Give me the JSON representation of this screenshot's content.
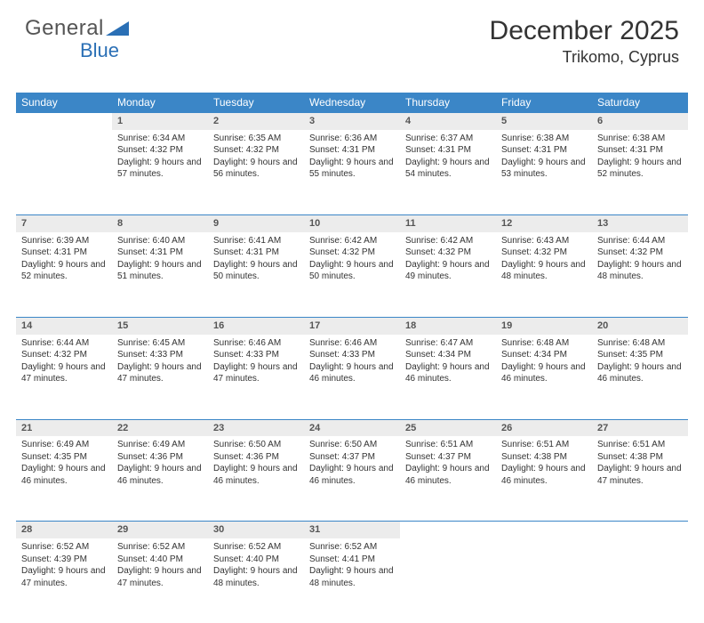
{
  "brand": {
    "name_part1": "General",
    "name_part2": "Blue",
    "text_color": "#555555",
    "accent_color": "#2a6fb5",
    "triangle_color": "#2a6fb5"
  },
  "header": {
    "title": "December 2025",
    "subtitle": "Trikomo, Cyprus",
    "title_fontsize": 30,
    "subtitle_fontsize": 18
  },
  "style": {
    "header_bg": "#3b86c7",
    "header_text": "#ffffff",
    "daynum_bg": "#ececec",
    "day_border": "#3b86c7",
    "body_text": "#333333",
    "body_fontsize": 10,
    "daynum_fontsize": 11,
    "col_header_fontsize": 12,
    "page_bg": "#ffffff"
  },
  "day_labels": [
    "Sunday",
    "Monday",
    "Tuesday",
    "Wednesday",
    "Thursday",
    "Friday",
    "Saturday"
  ],
  "weeks": [
    {
      "nums": [
        "",
        "1",
        "2",
        "3",
        "4",
        "5",
        "6"
      ],
      "cells": [
        null,
        {
          "sunrise": "Sunrise: 6:34 AM",
          "sunset": "Sunset: 4:32 PM",
          "day": "Daylight: 9 hours and 57 minutes."
        },
        {
          "sunrise": "Sunrise: 6:35 AM",
          "sunset": "Sunset: 4:32 PM",
          "day": "Daylight: 9 hours and 56 minutes."
        },
        {
          "sunrise": "Sunrise: 6:36 AM",
          "sunset": "Sunset: 4:31 PM",
          "day": "Daylight: 9 hours and 55 minutes."
        },
        {
          "sunrise": "Sunrise: 6:37 AM",
          "sunset": "Sunset: 4:31 PM",
          "day": "Daylight: 9 hours and 54 minutes."
        },
        {
          "sunrise": "Sunrise: 6:38 AM",
          "sunset": "Sunset: 4:31 PM",
          "day": "Daylight: 9 hours and 53 minutes."
        },
        {
          "sunrise": "Sunrise: 6:38 AM",
          "sunset": "Sunset: 4:31 PM",
          "day": "Daylight: 9 hours and 52 minutes."
        }
      ]
    },
    {
      "nums": [
        "7",
        "8",
        "9",
        "10",
        "11",
        "12",
        "13"
      ],
      "cells": [
        {
          "sunrise": "Sunrise: 6:39 AM",
          "sunset": "Sunset: 4:31 PM",
          "day": "Daylight: 9 hours and 52 minutes."
        },
        {
          "sunrise": "Sunrise: 6:40 AM",
          "sunset": "Sunset: 4:31 PM",
          "day": "Daylight: 9 hours and 51 minutes."
        },
        {
          "sunrise": "Sunrise: 6:41 AM",
          "sunset": "Sunset: 4:31 PM",
          "day": "Daylight: 9 hours and 50 minutes."
        },
        {
          "sunrise": "Sunrise: 6:42 AM",
          "sunset": "Sunset: 4:32 PM",
          "day": "Daylight: 9 hours and 50 minutes."
        },
        {
          "sunrise": "Sunrise: 6:42 AM",
          "sunset": "Sunset: 4:32 PM",
          "day": "Daylight: 9 hours and 49 minutes."
        },
        {
          "sunrise": "Sunrise: 6:43 AM",
          "sunset": "Sunset: 4:32 PM",
          "day": "Daylight: 9 hours and 48 minutes."
        },
        {
          "sunrise": "Sunrise: 6:44 AM",
          "sunset": "Sunset: 4:32 PM",
          "day": "Daylight: 9 hours and 48 minutes."
        }
      ]
    },
    {
      "nums": [
        "14",
        "15",
        "16",
        "17",
        "18",
        "19",
        "20"
      ],
      "cells": [
        {
          "sunrise": "Sunrise: 6:44 AM",
          "sunset": "Sunset: 4:32 PM",
          "day": "Daylight: 9 hours and 47 minutes."
        },
        {
          "sunrise": "Sunrise: 6:45 AM",
          "sunset": "Sunset: 4:33 PM",
          "day": "Daylight: 9 hours and 47 minutes."
        },
        {
          "sunrise": "Sunrise: 6:46 AM",
          "sunset": "Sunset: 4:33 PM",
          "day": "Daylight: 9 hours and 47 minutes."
        },
        {
          "sunrise": "Sunrise: 6:46 AM",
          "sunset": "Sunset: 4:33 PM",
          "day": "Daylight: 9 hours and 46 minutes."
        },
        {
          "sunrise": "Sunrise: 6:47 AM",
          "sunset": "Sunset: 4:34 PM",
          "day": "Daylight: 9 hours and 46 minutes."
        },
        {
          "sunrise": "Sunrise: 6:48 AM",
          "sunset": "Sunset: 4:34 PM",
          "day": "Daylight: 9 hours and 46 minutes."
        },
        {
          "sunrise": "Sunrise: 6:48 AM",
          "sunset": "Sunset: 4:35 PM",
          "day": "Daylight: 9 hours and 46 minutes."
        }
      ]
    },
    {
      "nums": [
        "21",
        "22",
        "23",
        "24",
        "25",
        "26",
        "27"
      ],
      "cells": [
        {
          "sunrise": "Sunrise: 6:49 AM",
          "sunset": "Sunset: 4:35 PM",
          "day": "Daylight: 9 hours and 46 minutes."
        },
        {
          "sunrise": "Sunrise: 6:49 AM",
          "sunset": "Sunset: 4:36 PM",
          "day": "Daylight: 9 hours and 46 minutes."
        },
        {
          "sunrise": "Sunrise: 6:50 AM",
          "sunset": "Sunset: 4:36 PM",
          "day": "Daylight: 9 hours and 46 minutes."
        },
        {
          "sunrise": "Sunrise: 6:50 AM",
          "sunset": "Sunset: 4:37 PM",
          "day": "Daylight: 9 hours and 46 minutes."
        },
        {
          "sunrise": "Sunrise: 6:51 AM",
          "sunset": "Sunset: 4:37 PM",
          "day": "Daylight: 9 hours and 46 minutes."
        },
        {
          "sunrise": "Sunrise: 6:51 AM",
          "sunset": "Sunset: 4:38 PM",
          "day": "Daylight: 9 hours and 46 minutes."
        },
        {
          "sunrise": "Sunrise: 6:51 AM",
          "sunset": "Sunset: 4:38 PM",
          "day": "Daylight: 9 hours and 47 minutes."
        }
      ]
    },
    {
      "nums": [
        "28",
        "29",
        "30",
        "31",
        "",
        "",
        ""
      ],
      "cells": [
        {
          "sunrise": "Sunrise: 6:52 AM",
          "sunset": "Sunset: 4:39 PM",
          "day": "Daylight: 9 hours and 47 minutes."
        },
        {
          "sunrise": "Sunrise: 6:52 AM",
          "sunset": "Sunset: 4:40 PM",
          "day": "Daylight: 9 hours and 47 minutes."
        },
        {
          "sunrise": "Sunrise: 6:52 AM",
          "sunset": "Sunset: 4:40 PM",
          "day": "Daylight: 9 hours and 48 minutes."
        },
        {
          "sunrise": "Sunrise: 6:52 AM",
          "sunset": "Sunset: 4:41 PM",
          "day": "Daylight: 9 hours and 48 minutes."
        },
        null,
        null,
        null
      ]
    }
  ]
}
